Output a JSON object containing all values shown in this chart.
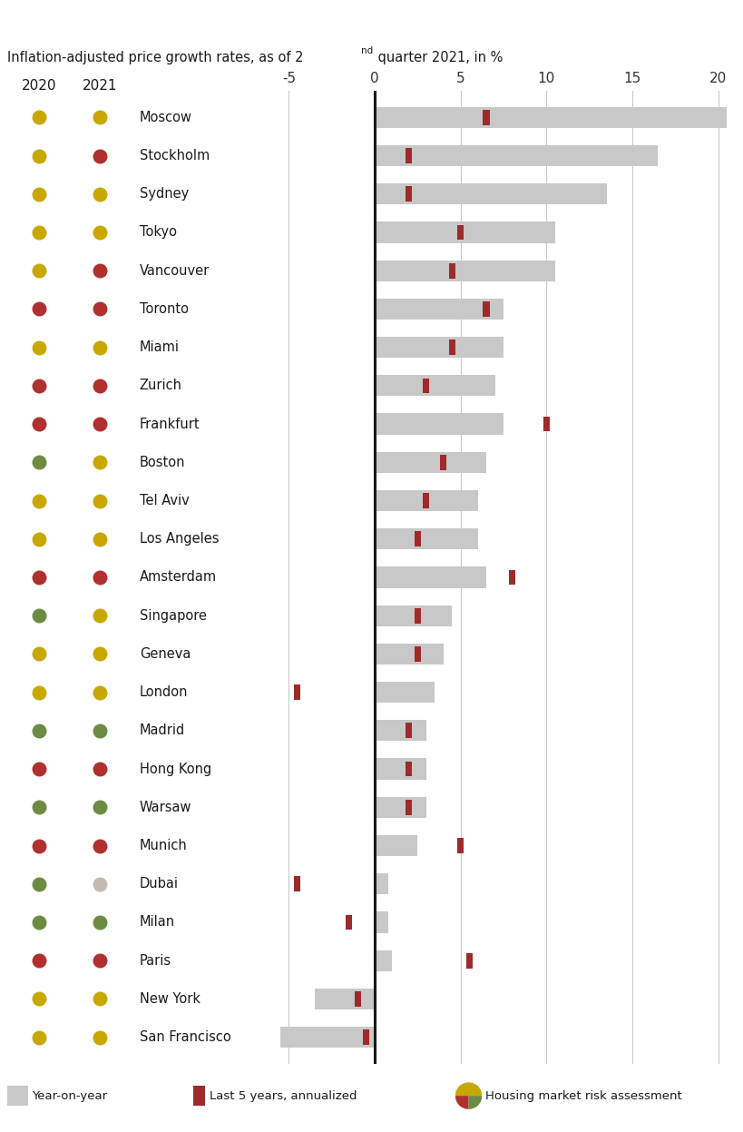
{
  "cities": [
    "Moscow",
    "Stockholm",
    "Sydney",
    "Tokyo",
    "Vancouver",
    "Toronto",
    "Miami",
    "Zurich",
    "Frankfurt",
    "Boston",
    "Tel Aviv",
    "Los Angeles",
    "Amsterdam",
    "Singapore",
    "Geneva",
    "London",
    "Madrid",
    "Hong Kong",
    "Warsaw",
    "Munich",
    "Dubai",
    "Milan",
    "Paris",
    "New York",
    "San Francisco"
  ],
  "yoy": [
    20.5,
    16.5,
    13.5,
    10.5,
    10.5,
    7.5,
    7.5,
    7.0,
    7.5,
    6.5,
    6.0,
    6.0,
    6.5,
    4.5,
    4.0,
    3.5,
    3.0,
    3.0,
    3.0,
    2.5,
    0.8,
    0.8,
    1.0,
    -3.5,
    -5.5
  ],
  "last5": [
    6.5,
    2.0,
    2.0,
    5.0,
    4.5,
    6.5,
    4.5,
    3.0,
    10.0,
    4.0,
    3.0,
    2.5,
    8.0,
    2.5,
    2.5,
    -4.5,
    2.0,
    2.0,
    2.0,
    5.0,
    -4.5,
    -1.5,
    5.5,
    -1.0,
    -0.5
  ],
  "dot2020_colors": [
    "#c8a800",
    "#c8a800",
    "#c8a800",
    "#c8a800",
    "#c8a800",
    "#b03030",
    "#c8a800",
    "#b03030",
    "#b03030",
    "#6b8c42",
    "#c8a800",
    "#c8a800",
    "#b03030",
    "#6b8c42",
    "#c8a800",
    "#c8a800",
    "#6b8c42",
    "#b03030",
    "#6b8c42",
    "#b03030",
    "#6b8c42",
    "#6b8c42",
    "#b03030",
    "#c8a800",
    "#c8a800"
  ],
  "dot2021_colors": [
    "#c8a800",
    "#b03030",
    "#c8a800",
    "#c8a800",
    "#b03030",
    "#b03030",
    "#c8a800",
    "#b03030",
    "#b03030",
    "#c8a800",
    "#c8a800",
    "#c8a800",
    "#b03030",
    "#c8a800",
    "#c8a800",
    "#c8a800",
    "#6b8c42",
    "#b03030",
    "#6b8c42",
    "#b03030",
    "#c0bdb0",
    "#6b8c42",
    "#b03030",
    "#c8a800",
    "#c8a800"
  ],
  "bar_color": "#c8c8c8",
  "marker_color": "#9e2a2b",
  "axis_zero_color": "#1a1a1a",
  "grid_color": "#c8c8c8",
  "xlim": [
    -6.5,
    21.5
  ],
  "xticks": [
    -5,
    0,
    5,
    10,
    15,
    20
  ],
  "background_color": "#ffffff",
  "dot_color_yellow": "#c8a800",
  "dot_color_red": "#b03030",
  "dot_color_green": "#6b8c42",
  "dot_color_gray": "#c0bdb0"
}
